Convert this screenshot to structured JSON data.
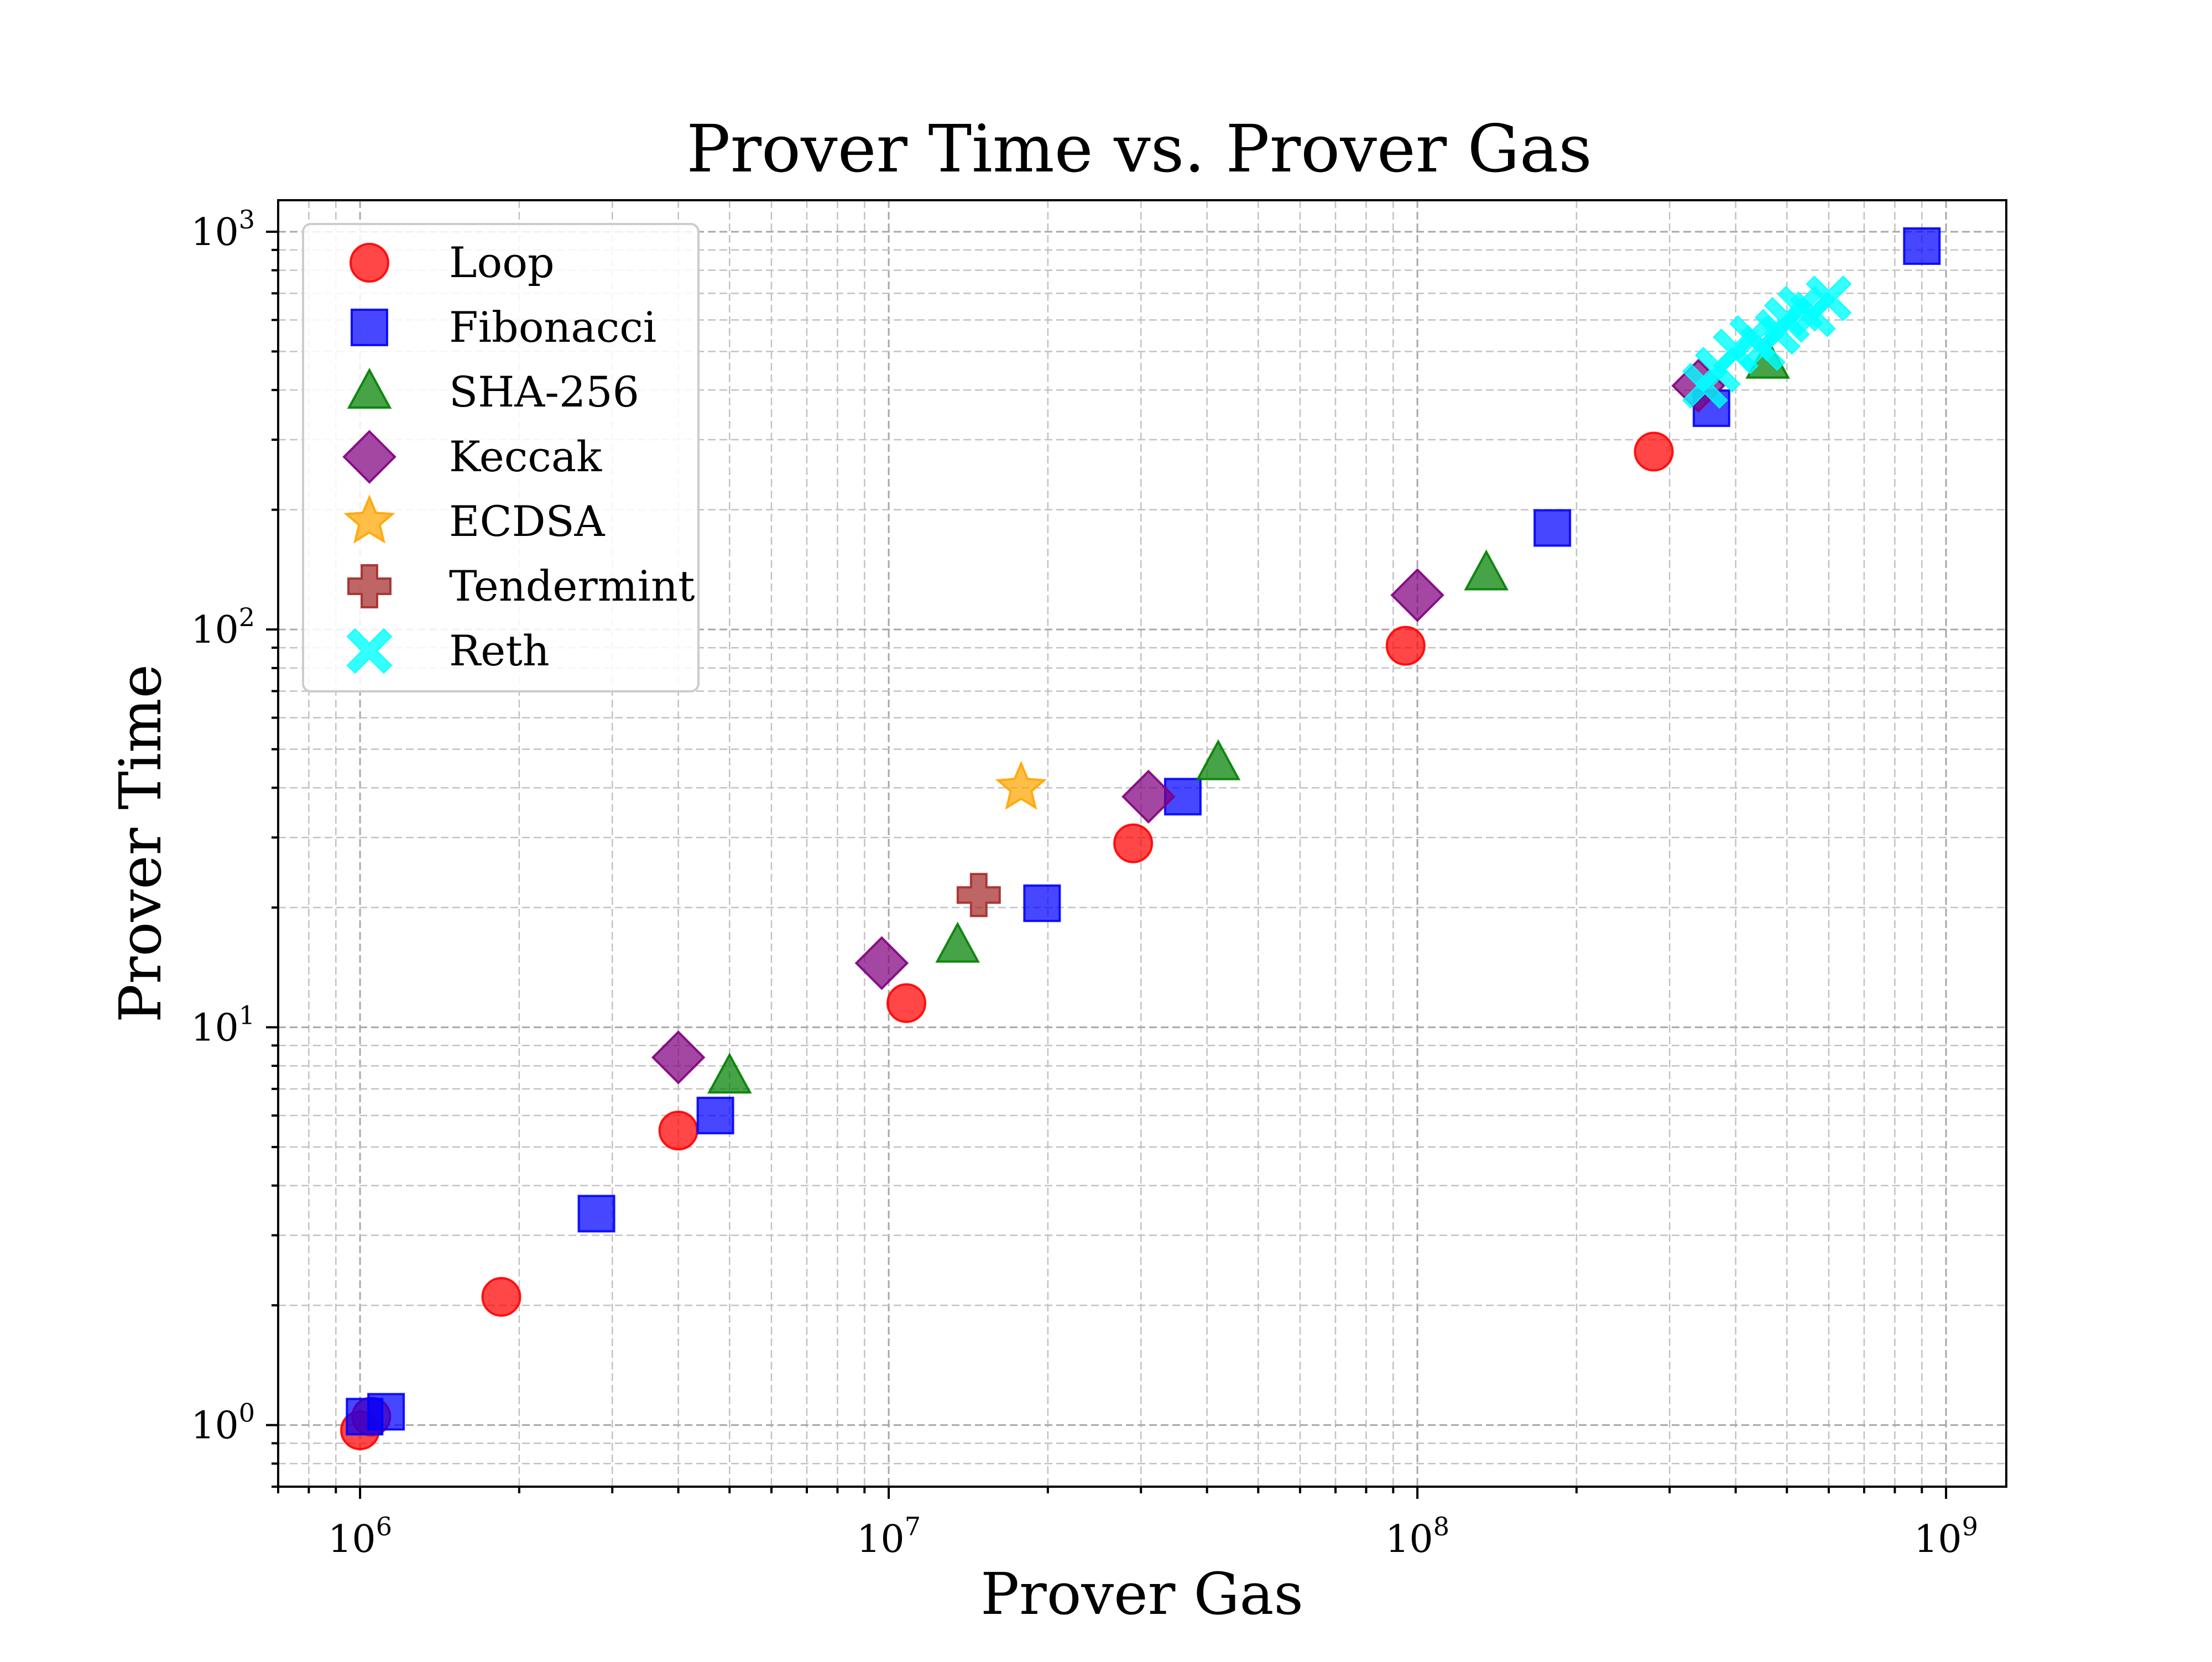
{
  "chart_data": {
    "type": "scatter",
    "title": "Prover Time vs. Prover Gas",
    "xlabel": "Prover Gas",
    "ylabel": "Prover Time",
    "xscale": "log",
    "yscale": "log",
    "xlim": [
      700000,
      1300000000
    ],
    "ylim": [
      0.7,
      1200
    ],
    "x_ticks": [
      {
        "base": "10",
        "exp": "6",
        "value": 1000000
      },
      {
        "base": "10",
        "exp": "7",
        "value": 10000000
      },
      {
        "base": "10",
        "exp": "8",
        "value": 100000000
      },
      {
        "base": "10",
        "exp": "9",
        "value": 1000000000
      }
    ],
    "y_ticks": [
      {
        "base": "10",
        "exp": "0",
        "value": 1
      },
      {
        "base": "10",
        "exp": "1",
        "value": 10
      },
      {
        "base": "10",
        "exp": "2",
        "value": 100
      },
      {
        "base": "10",
        "exp": "3",
        "value": 1000
      }
    ],
    "grid": "both (major and minor), dashed",
    "legend_position": "upper-left",
    "series": [
      {
        "name": "Loop",
        "marker": "circle",
        "color": "#ff0000",
        "points": [
          [
            1000000,
            0.97
          ],
          [
            1050000,
            1.05
          ],
          [
            1850000,
            2.1
          ],
          [
            4000000,
            5.5
          ],
          [
            10800000,
            11.5
          ],
          [
            29000000,
            29
          ],
          [
            95000000,
            91
          ],
          [
            280000000,
            280
          ]
        ]
      },
      {
        "name": "Fibonacci",
        "marker": "square",
        "color": "#0000ff",
        "points": [
          [
            1020000,
            1.05
          ],
          [
            1120000,
            1.08
          ],
          [
            2800000,
            3.4
          ],
          [
            4700000,
            6.0
          ],
          [
            19500000,
            20.5
          ],
          [
            36000000,
            38
          ],
          [
            180000000,
            180
          ],
          [
            360000000,
            360
          ],
          [
            900000000,
            920
          ]
        ]
      },
      {
        "name": "SHA-256",
        "marker": "triangle",
        "color": "#008000",
        "points": [
          [
            5000000,
            7.5
          ],
          [
            13500000,
            16
          ],
          [
            42000000,
            46
          ],
          [
            135000000,
            138
          ],
          [
            460000000,
            470
          ]
        ]
      },
      {
        "name": "Keccak",
        "marker": "diamond",
        "color": "#800080",
        "points": [
          [
            4000000,
            8.4
          ],
          [
            9700000,
            14.5
          ],
          [
            31000000,
            38
          ],
          [
            100000000,
            122
          ],
          [
            340000000,
            410
          ]
        ]
      },
      {
        "name": "ECDSA",
        "marker": "star",
        "color": "#ffa500",
        "points": [
          [
            17800000,
            40
          ]
        ]
      },
      {
        "name": "Tendermint",
        "marker": "plus",
        "color": "#a52a2a",
        "points": [
          [
            14800000,
            21.5
          ]
        ]
      },
      {
        "name": "Reth",
        "marker": "x",
        "color": "#00ffff",
        "points": [
          [
            350000000,
            410
          ],
          [
            370000000,
            450
          ],
          [
            400000000,
            500
          ],
          [
            430000000,
            540
          ],
          [
            450000000,
            510
          ],
          [
            480000000,
            560
          ],
          [
            500000000,
            600
          ],
          [
            530000000,
            640
          ],
          [
            560000000,
            620
          ],
          [
            600000000,
            680
          ]
        ]
      }
    ]
  }
}
